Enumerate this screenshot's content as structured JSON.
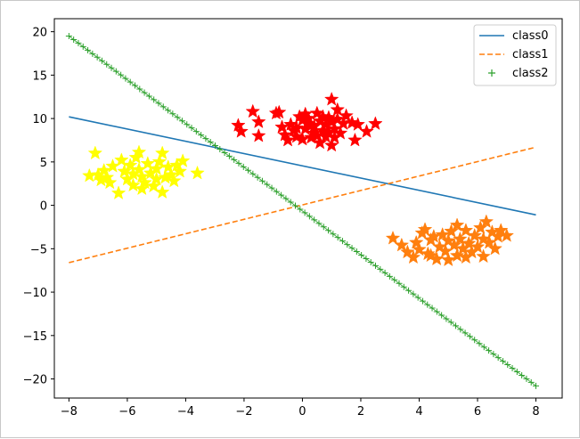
{
  "chart_data": {
    "type": "scatter",
    "xlim": [
      -8.5,
      8.9
    ],
    "ylim": [
      -22.2,
      21.5
    ],
    "x_ticks": [
      -8,
      -6,
      -4,
      -2,
      0,
      2,
      4,
      6,
      8
    ],
    "y_ticks": [
      20,
      15,
      10,
      5,
      0,
      -5,
      -10,
      -15,
      -20
    ],
    "x_tick_labels": [
      "−8",
      "−6",
      "−4",
      "−2",
      "0",
      "2",
      "4",
      "6",
      "8"
    ],
    "y_tick_labels": [
      "20",
      "15",
      "10",
      "5",
      "0",
      "−5",
      "−10",
      "−15",
      "−20"
    ],
    "grid": false,
    "legend_position": "top-right",
    "series": [
      {
        "name": "class0",
        "kind": "line",
        "style": "solid",
        "color": "#1f77b4",
        "x": [
          -8,
          8
        ],
        "y": [
          10.2,
          -1.1
        ]
      },
      {
        "name": "class1",
        "kind": "line",
        "style": "dashed",
        "color": "#ff7f0e",
        "x": [
          -8,
          8
        ],
        "y": [
          -6.6,
          6.7
        ]
      },
      {
        "name": "class2",
        "kind": "line-markers",
        "marker": "plus",
        "color": "#2ca02c",
        "x_start": -8,
        "x_end": 8,
        "count": 100,
        "y_start": 19.5,
        "y_end": -20.8
      },
      {
        "kind": "scatter",
        "marker": "star",
        "color": "#ff0000",
        "points": [
          [
            -2.2,
            9.2
          ],
          [
            -2.1,
            8.5
          ],
          [
            -1.7,
            10.8
          ],
          [
            -1.5,
            9.6
          ],
          [
            -1.5,
            8.0
          ],
          [
            -0.9,
            10.6
          ],
          [
            -0.8,
            10.7
          ],
          [
            -0.7,
            9.0
          ],
          [
            -0.6,
            8.1
          ],
          [
            -0.5,
            7.5
          ],
          [
            -0.4,
            9.3
          ],
          [
            -0.3,
            8.6
          ],
          [
            -0.2,
            7.9
          ],
          [
            -0.1,
            10.2
          ],
          [
            0.0,
            9.8
          ],
          [
            0.0,
            7.6
          ],
          [
            0.1,
            10.5
          ],
          [
            0.1,
            8.8
          ],
          [
            0.2,
            9.4
          ],
          [
            0.2,
            10.0
          ],
          [
            0.3,
            7.8
          ],
          [
            0.4,
            8.3
          ],
          [
            0.4,
            9.1
          ],
          [
            0.5,
            10.6
          ],
          [
            0.5,
            8.0
          ],
          [
            0.6,
            9.7
          ],
          [
            0.6,
            7.2
          ],
          [
            0.7,
            10.2
          ],
          [
            0.7,
            8.6
          ],
          [
            0.8,
            9.3
          ],
          [
            0.8,
            7.9
          ],
          [
            0.9,
            8.4
          ],
          [
            0.9,
            10.1
          ],
          [
            1.0,
            12.2
          ],
          [
            1.0,
            9.6
          ],
          [
            1.0,
            6.9
          ],
          [
            1.1,
            8.8
          ],
          [
            1.2,
            11.0
          ],
          [
            1.2,
            9.9
          ],
          [
            1.3,
            8.3
          ],
          [
            1.4,
            9.4
          ],
          [
            1.5,
            10.3
          ],
          [
            1.7,
            9.5
          ],
          [
            1.8,
            7.5
          ],
          [
            1.9,
            9.3
          ],
          [
            2.2,
            8.5
          ],
          [
            2.5,
            9.4
          ],
          [
            0.3,
            9.2
          ],
          [
            -0.2,
            8.9
          ],
          [
            1.1,
            7.8
          ]
        ]
      },
      {
        "kind": "scatter",
        "marker": "star",
        "color": "#ffff00",
        "points": [
          [
            -7.3,
            3.4
          ],
          [
            -7.1,
            6.0
          ],
          [
            -7.0,
            3.5
          ],
          [
            -6.9,
            2.9
          ],
          [
            -6.8,
            4.0
          ],
          [
            -6.7,
            3.2
          ],
          [
            -6.3,
            1.4
          ],
          [
            -6.2,
            5.2
          ],
          [
            -6.1,
            3.9
          ],
          [
            -6.0,
            3.0
          ],
          [
            -5.9,
            4.6
          ],
          [
            -5.8,
            2.3
          ],
          [
            -5.8,
            3.6
          ],
          [
            -5.7,
            5.5
          ],
          [
            -5.6,
            4.1
          ],
          [
            -5.6,
            6.1
          ],
          [
            -5.5,
            3.3
          ],
          [
            -5.4,
            2.6
          ],
          [
            -5.3,
            4.8
          ],
          [
            -5.2,
            3.7
          ],
          [
            -5.1,
            2.2
          ],
          [
            -5.0,
            4.2
          ],
          [
            -5.0,
            3.0
          ],
          [
            -4.9,
            5.0
          ],
          [
            -4.8,
            6.0
          ],
          [
            -4.8,
            1.5
          ],
          [
            -4.7,
            3.2
          ],
          [
            -4.6,
            4.4
          ],
          [
            -4.5,
            3.5
          ],
          [
            -4.4,
            2.8
          ],
          [
            -4.3,
            4.6
          ],
          [
            -4.2,
            3.9
          ],
          [
            -4.1,
            5.1
          ],
          [
            -3.6,
            3.7
          ],
          [
            -6.5,
            4.5
          ],
          [
            -6.6,
            2.6
          ],
          [
            -5.5,
            1.9
          ]
        ]
      },
      {
        "kind": "scatter",
        "marker": "star",
        "color": "#ff7f0e",
        "points": [
          [
            3.1,
            -3.8
          ],
          [
            3.4,
            -4.6
          ],
          [
            3.6,
            -5.4
          ],
          [
            3.8,
            -6.0
          ],
          [
            3.9,
            -4.3
          ],
          [
            4.0,
            -5.1
          ],
          [
            4.1,
            -3.2
          ],
          [
            4.2,
            -2.8
          ],
          [
            4.3,
            -5.6
          ],
          [
            4.4,
            -4.0
          ],
          [
            4.5,
            -3.6
          ],
          [
            4.6,
            -6.2
          ],
          [
            4.7,
            -4.8
          ],
          [
            4.8,
            -3.4
          ],
          [
            4.9,
            -5.3
          ],
          [
            5.0,
            -4.1
          ],
          [
            5.0,
            -6.3
          ],
          [
            5.1,
            -3.0
          ],
          [
            5.2,
            -4.6
          ],
          [
            5.3,
            -2.3
          ],
          [
            5.3,
            -5.8
          ],
          [
            5.4,
            -3.9
          ],
          [
            5.5,
            -5.0
          ],
          [
            5.6,
            -2.9
          ],
          [
            5.7,
            -4.4
          ],
          [
            5.8,
            -5.4
          ],
          [
            5.9,
            -3.5
          ],
          [
            6.0,
            -4.8
          ],
          [
            6.1,
            -2.6
          ],
          [
            6.2,
            -3.9
          ],
          [
            6.2,
            -5.9
          ],
          [
            6.3,
            -1.9
          ],
          [
            6.4,
            -4.3
          ],
          [
            6.5,
            -3.1
          ],
          [
            6.6,
            -5.0
          ],
          [
            6.7,
            -3.6
          ],
          [
            6.8,
            -2.9
          ],
          [
            7.0,
            -3.5
          ],
          [
            5.6,
            -6.0
          ],
          [
            4.4,
            -5.8
          ]
        ]
      }
    ]
  }
}
